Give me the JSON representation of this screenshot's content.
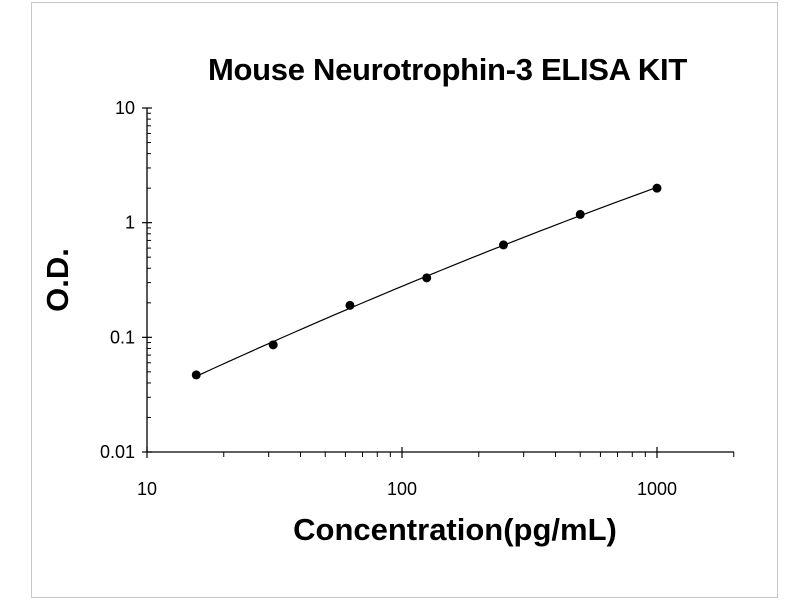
{
  "chart_data": {
    "type": "scatter",
    "title": "Mouse Neurotrophin-3 ELISA KIT",
    "xlabel": "Concentration(pg/mL)",
    "ylabel": "O.D.",
    "xscale": "log",
    "yscale": "log",
    "xlim": [
      10,
      2000
    ],
    "ylim": [
      0.01,
      10
    ],
    "xticks": [
      "10",
      "100",
      "1000"
    ],
    "yticks": [
      "0.01",
      "0.1",
      "1",
      "10"
    ],
    "grid": false,
    "legend": "none",
    "series": [
      {
        "x": [
          15.6,
          31.25,
          62.5,
          125,
          250,
          500,
          1000
        ],
        "y": [
          0.047,
          0.086,
          0.19,
          0.33,
          0.64,
          1.18,
          2.0
        ],
        "marker": "filled-circle",
        "fit_line": true
      }
    ]
  }
}
